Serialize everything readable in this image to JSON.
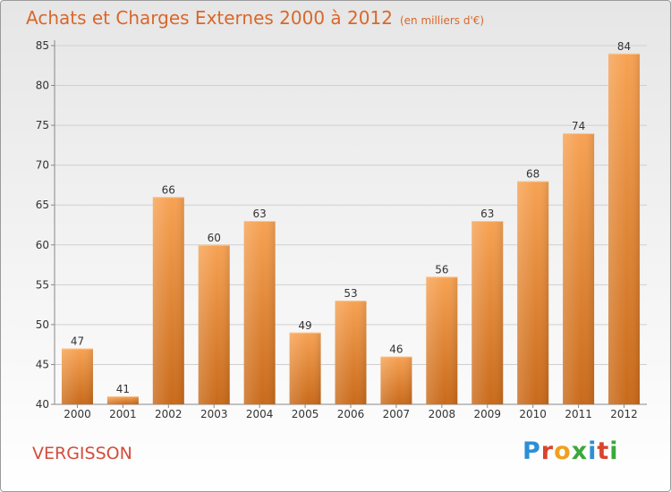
{
  "header": {
    "title": "Achats et Charges Externes 2000 à 2012",
    "subtitle": "(en milliers d'€)"
  },
  "footer": {
    "commune": "VERGISSON",
    "logo_text": "Proxiti"
  },
  "colors": {
    "title": "#d9672a",
    "bar_top": "#f7a253",
    "bar_bottom": "#c96a1a",
    "commune": "#d44c3c",
    "logo_letters": [
      "#2d8fd5",
      "#d9442c",
      "#f0a020",
      "#3aa83a",
      "#2d8fd5",
      "#d9442c",
      "#3aa83a"
    ]
  },
  "chart_data": {
    "type": "bar",
    "title": "Achats et Charges Externes 2000 à 2012",
    "subtitle": "(en milliers d'€)",
    "categories": [
      "2000",
      "2001",
      "2002",
      "2003",
      "2004",
      "2005",
      "2006",
      "2007",
      "2008",
      "2009",
      "2010",
      "2011",
      "2012"
    ],
    "values": [
      47,
      41,
      66,
      60,
      63,
      49,
      53,
      46,
      56,
      63,
      68,
      74,
      84
    ],
    "value_labels": [
      "47",
      "41",
      "66",
      "60",
      "63",
      "49",
      "53",
      "46",
      "56",
      "63",
      "68",
      "74",
      "84"
    ],
    "ylim": [
      40,
      85
    ],
    "yticks": [
      "40",
      "45",
      "50",
      "55",
      "60",
      "65",
      "70",
      "75",
      "80",
      "85"
    ],
    "xlabel": "",
    "ylabel": "",
    "grid": true,
    "legend": "none"
  }
}
